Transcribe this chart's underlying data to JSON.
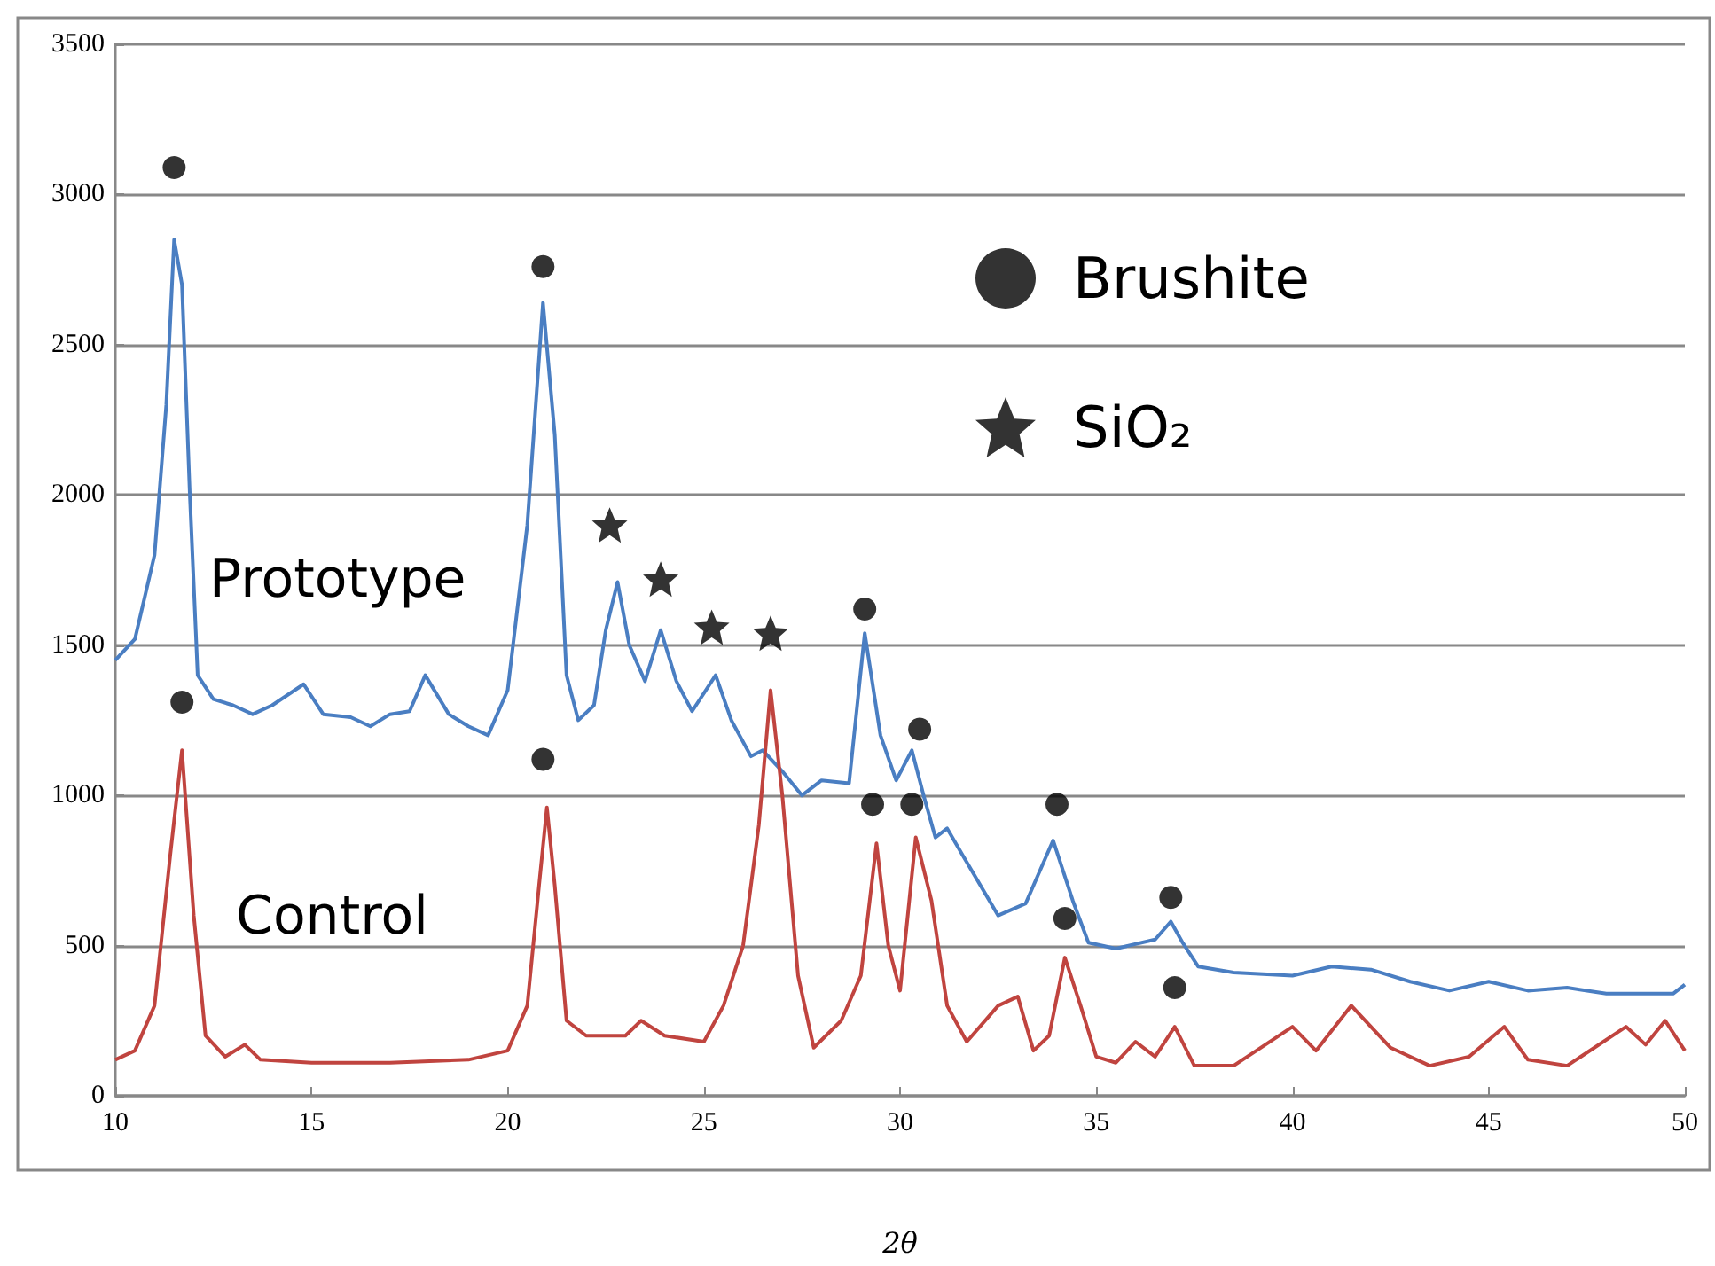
{
  "chart_data": {
    "type": "line",
    "xlabel": "2θ",
    "xlim": [
      10,
      50
    ],
    "xticks": [
      10,
      15,
      20,
      25,
      30,
      35,
      40,
      45,
      50
    ],
    "ylim": [
      0,
      3500
    ],
    "yticks": [
      0,
      500,
      1000,
      1500,
      2000,
      2500,
      3000,
      3500
    ],
    "grid": "y",
    "legend": "top right",
    "marker": "none",
    "line_style": "solid",
    "series": [
      {
        "name": "Prototype",
        "color": "#4a7ec2",
        "x": [
          10,
          10.5,
          11,
          11.3,
          11.5,
          11.7,
          11.9,
          12.1,
          12.5,
          13,
          13.5,
          14,
          14.8,
          15.3,
          16,
          16.5,
          17,
          17.5,
          17.9,
          18.5,
          19,
          19.5,
          20,
          20.5,
          20.9,
          21.2,
          21.5,
          21.8,
          22.2,
          22.5,
          22.8,
          23.1,
          23.5,
          23.9,
          24.3,
          24.7,
          25.3,
          25.7,
          26.2,
          26.5,
          27,
          27.5,
          28,
          28.7,
          29.1,
          29.5,
          29.9,
          30.3,
          30.6,
          30.9,
          31.2,
          31.6,
          32.5,
          33.2,
          33.9,
          34.4,
          34.8,
          35.5,
          36.5,
          36.9,
          37.2,
          37.6,
          38.5,
          40,
          41,
          42,
          43,
          44,
          45,
          46,
          47,
          48,
          49,
          49.7,
          50
        ],
        "values": [
          1450,
          1520,
          1800,
          2300,
          2850,
          2700,
          2000,
          1400,
          1320,
          1300,
          1270,
          1300,
          1370,
          1270,
          1260,
          1230,
          1270,
          1280,
          1400,
          1270,
          1230,
          1200,
          1350,
          1900,
          2640,
          2200,
          1400,
          1250,
          1300,
          1550,
          1710,
          1500,
          1380,
          1550,
          1380,
          1280,
          1400,
          1250,
          1130,
          1150,
          1080,
          1000,
          1050,
          1040,
          1540,
          1200,
          1050,
          1150,
          1000,
          860,
          890,
          800,
          600,
          640,
          850,
          650,
          510,
          490,
          520,
          580,
          510,
          430,
          410,
          400,
          430,
          420,
          380,
          350,
          380,
          350,
          360,
          340,
          340,
          340,
          370
        ]
      },
      {
        "name": "Control",
        "color": "#c0443f",
        "x": [
          10,
          10.5,
          11,
          11.4,
          11.7,
          12,
          12.3,
          12.8,
          13.3,
          13.7,
          15,
          17,
          19,
          20,
          20.5,
          20.8,
          21,
          21.2,
          21.5,
          22,
          23,
          23.4,
          24,
          25,
          25.5,
          26,
          26.4,
          26.7,
          27,
          27.4,
          27.8,
          28.5,
          29,
          29.4,
          29.7,
          30,
          30.4,
          30.8,
          31.2,
          31.7,
          32.5,
          33,
          33.4,
          33.8,
          34.2,
          34.6,
          35,
          35.5,
          36,
          36.5,
          37,
          37.5,
          38.5,
          40,
          40.6,
          41.5,
          42.5,
          43.5,
          44.5,
          45.4,
          46,
          47,
          48.5,
          49,
          49.5,
          50
        ],
        "values": [
          120,
          150,
          300,
          800,
          1150,
          600,
          200,
          130,
          170,
          120,
          110,
          110,
          120,
          150,
          300,
          700,
          960,
          700,
          250,
          200,
          200,
          250,
          200,
          180,
          300,
          500,
          900,
          1350,
          1000,
          400,
          160,
          250,
          400,
          840,
          500,
          350,
          860,
          650,
          300,
          180,
          300,
          330,
          150,
          200,
          460,
          300,
          130,
          110,
          180,
          130,
          230,
          100,
          100,
          230,
          150,
          300,
          160,
          100,
          130,
          230,
          120,
          100,
          230,
          170,
          250,
          150
        ]
      },
      {
        "name": "Brushite",
        "type": "scatter",
        "marker": "circle",
        "color": "#000000",
        "x": [
          11.5,
          11.7,
          20.9,
          20.9,
          29.1,
          29.3,
          30.3,
          30.5,
          34,
          34.2,
          36.9,
          37
        ],
        "values": [
          3090,
          1310,
          2760,
          1120,
          1620,
          970,
          970,
          1220,
          970,
          590,
          660,
          360
        ]
      },
      {
        "name": "SiO₂",
        "type": "scatter",
        "marker": "star",
        "color": "#000000",
        "x": [
          22.6,
          23.9,
          25.2,
          26.7
        ],
        "values": [
          1900,
          1720,
          1560,
          1540
        ]
      }
    ]
  }
}
